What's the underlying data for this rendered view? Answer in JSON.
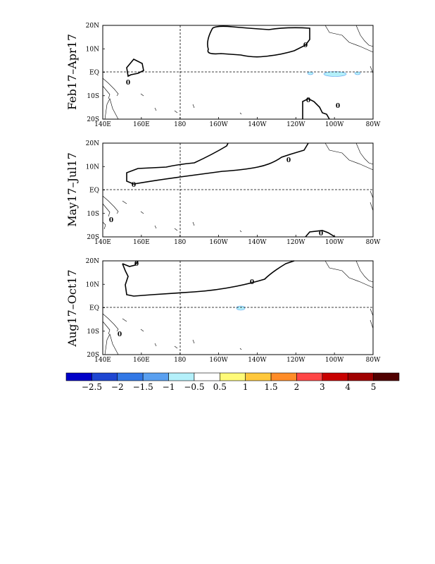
{
  "figure": {
    "lon_ticks": [
      "140E",
      "160E",
      "180",
      "160W",
      "140W",
      "120W",
      "100W",
      "80W"
    ],
    "lat_ticks": [
      "20N",
      "10N",
      "EQ",
      "10S",
      "20S"
    ],
    "panels": [
      {
        "label": "Feb17–Apr17",
        "contour_marks": [
          "0",
          "0",
          "0",
          "0"
        ]
      },
      {
        "label": "May17–Jul17",
        "contour_marks": [
          "0",
          "0",
          "0",
          "0"
        ]
      },
      {
        "label": "Aug17–Oct17",
        "contour_marks": [
          "0",
          "0",
          "0"
        ]
      }
    ],
    "colorbar": {
      "labels": [
        "−2.5",
        "−2",
        "−1.5",
        "−1",
        "−0.5",
        "0.5",
        "1",
        "1.5",
        "2",
        "3",
        "4",
        "5"
      ],
      "colors": [
        "#0000c8",
        "#1e46d2",
        "#3278e6",
        "#5aa0f0",
        "#b4f0fa",
        "#ffffff",
        "#fffa78",
        "#ffc83c",
        "#ff8c28",
        "#ff4646",
        "#c80000",
        "#a00000",
        "#500000"
      ]
    },
    "anomaly_fill_color": "#b4f0fa"
  }
}
